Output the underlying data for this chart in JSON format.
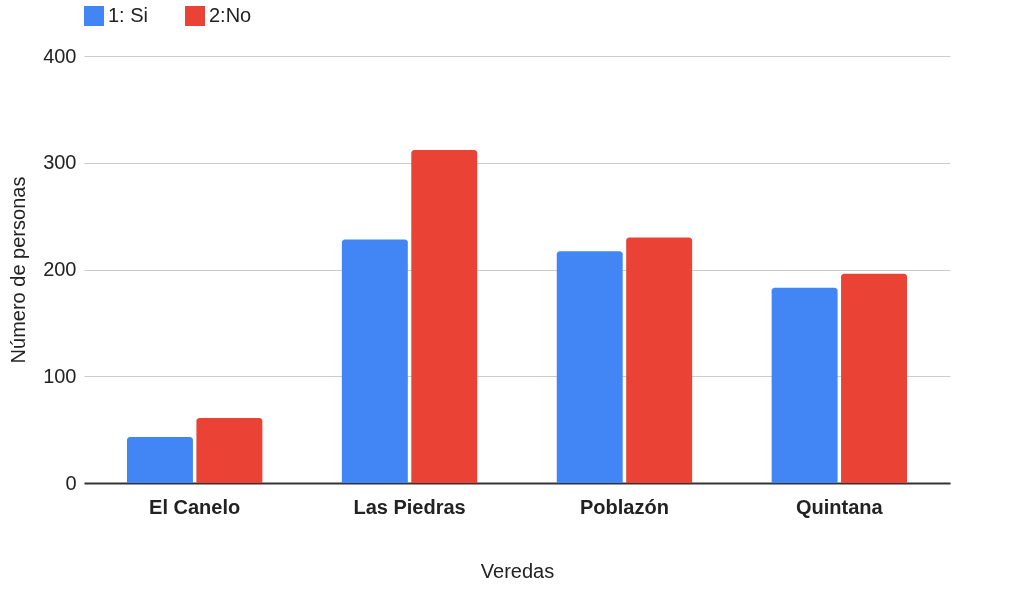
{
  "chart_data": {
    "type": "bar",
    "xlabel": "Veredas",
    "ylabel": "Número de personas",
    "categories": [
      "El Canelo",
      "Las Piedras",
      "Poblazón",
      "Quintana"
    ],
    "series": [
      {
        "name": "1: Si",
        "color": "#4285f4",
        "values": [
          43,
          228,
          217,
          183
        ]
      },
      {
        "name": "2:No",
        "color": "#ea4335",
        "values": [
          61,
          312,
          230,
          196
        ]
      }
    ],
    "ylim": [
      0,
      400
    ],
    "yticks": [
      0,
      100,
      200,
      300,
      400
    ],
    "grid": "y",
    "legend": "top"
  }
}
